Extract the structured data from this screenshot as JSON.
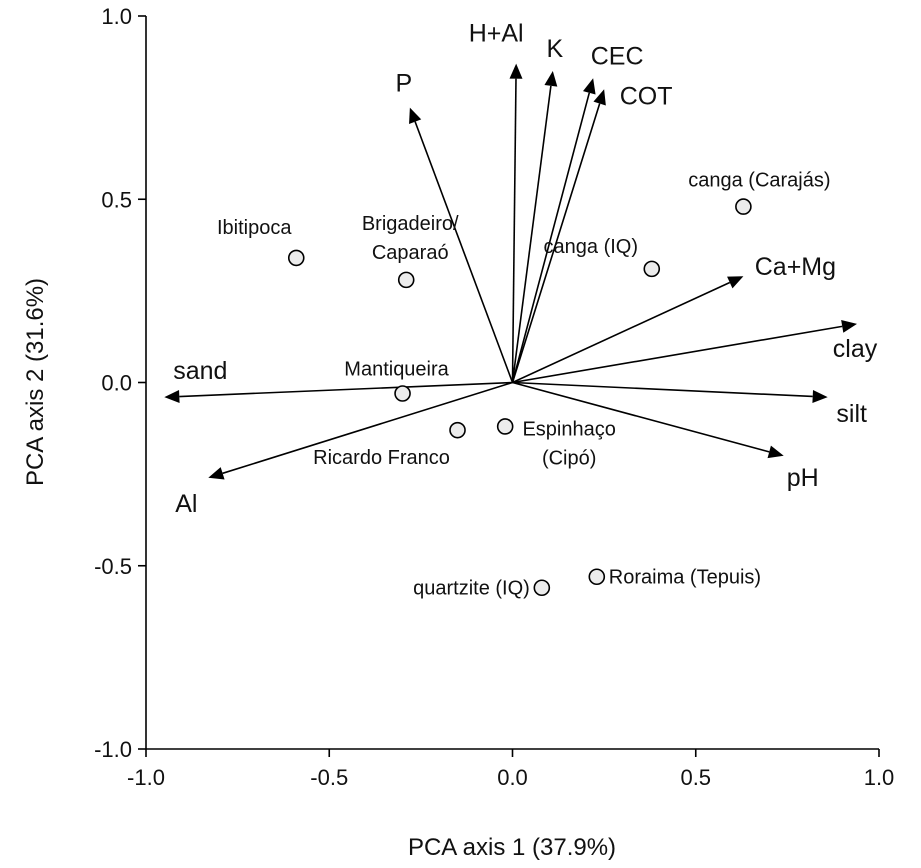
{
  "chart_data": {
    "type": "scatter",
    "title": "",
    "xlabel": "PCA  axis 1 (37.9%)",
    "ylabel": "PCA axis 2 (31.6%)",
    "xlim": [
      -1.0,
      1.0
    ],
    "ylim": [
      -1.0,
      1.0
    ],
    "x_ticks": [
      "-1.0",
      "-0.5",
      "0.0",
      "0.5",
      "1.0"
    ],
    "y_ticks": [
      "-1.0",
      "-0.5",
      "0.0",
      "0.5",
      "1.0"
    ],
    "grid": false,
    "series": [
      {
        "kind": "vectors",
        "points": [
          {
            "label": "H+Al",
            "x": 0.01,
            "y": 0.87
          },
          {
            "label": "K",
            "x": 0.11,
            "y": 0.85
          },
          {
            "label": "CEC",
            "x": 0.22,
            "y": 0.83
          },
          {
            "label": "COT",
            "x": 0.25,
            "y": 0.8
          },
          {
            "label": "P",
            "x": -0.28,
            "y": 0.75
          },
          {
            "label": "Ca+Mg",
            "x": 0.63,
            "y": 0.29
          },
          {
            "label": "clay",
            "x": 0.94,
            "y": 0.16
          },
          {
            "label": "silt",
            "x": 0.86,
            "y": -0.04
          },
          {
            "label": "pH",
            "x": 0.74,
            "y": -0.2
          },
          {
            "label": "sand",
            "x": -0.95,
            "y": -0.04
          },
          {
            "label": "Al",
            "x": -0.83,
            "y": -0.26
          }
        ]
      },
      {
        "kind": "sites",
        "points": [
          {
            "label": "canga (Carajás)",
            "x": 0.63,
            "y": 0.48
          },
          {
            "label": "canga (IQ)",
            "x": 0.38,
            "y": 0.31
          },
          {
            "label": "Ibitipoca",
            "x": -0.59,
            "y": 0.34
          },
          {
            "label": "Brigadeiro/\nCaparaó",
            "x": -0.29,
            "y": 0.28
          },
          {
            "label": "Mantiqueira",
            "x": -0.3,
            "y": -0.03
          },
          {
            "label": "Ricardo Franco",
            "x": -0.15,
            "y": -0.13
          },
          {
            "label": "Espinhaço\n(Cipó)",
            "x": -0.02,
            "y": -0.12
          },
          {
            "label": "quartzite (IQ)",
            "x": 0.08,
            "y": -0.56
          },
          {
            "label": "Roraima (Tepuis)",
            "x": 0.23,
            "y": -0.53
          }
        ]
      }
    ]
  }
}
